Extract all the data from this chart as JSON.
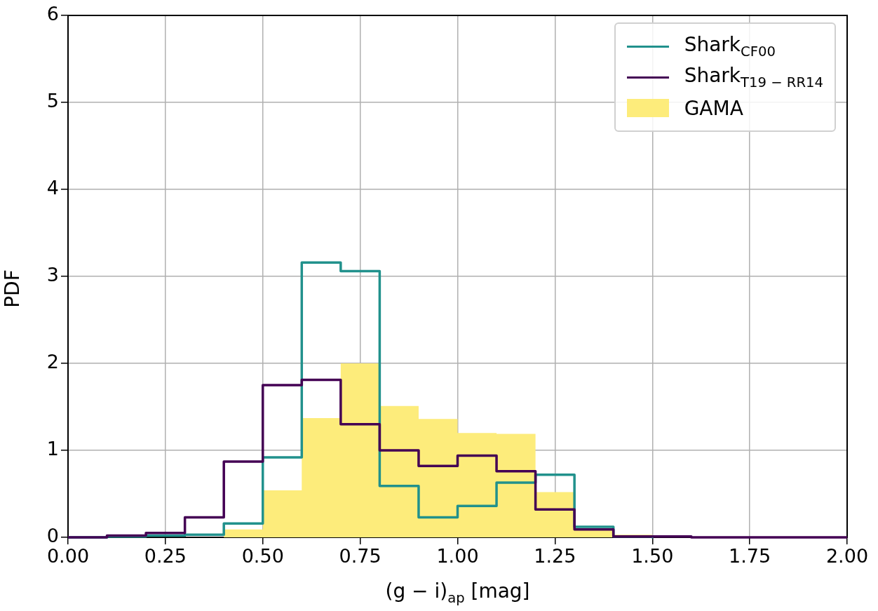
{
  "chart_data": {
    "type": "histogram",
    "xlabel": "(g − i)$_{ap}$ [mag]",
    "ylabel": "PDF",
    "bins": [
      0,
      0.1,
      0.2,
      0.3,
      0.4,
      0.5,
      0.6,
      0.7,
      0.8,
      0.9,
      1.0,
      1.1,
      1.2,
      1.3,
      1.4,
      1.5,
      1.6,
      1.7,
      1.8,
      1.9,
      2.0
    ],
    "series": [
      {
        "name": "Shark$_{CF00}$",
        "type": "step",
        "color": "#21918c",
        "x": [
          0,
          0.1,
          0.2,
          0.3,
          0.4,
          0.5,
          0.6,
          0.7,
          0.8,
          0.9,
          1.0,
          1.1,
          1.2,
          1.3,
          1.4,
          1.5
        ],
        "values": [
          0,
          0.01,
          0.02,
          0.03,
          0.16,
          0.92,
          3.16,
          3.06,
          0.59,
          0.23,
          0.36,
          0.63,
          0.72,
          0.12,
          0.01,
          0
        ]
      },
      {
        "name": "Shark$_{T19 − RR14}$",
        "type": "step",
        "color": "#440154",
        "x": [
          0,
          0.1,
          0.2,
          0.3,
          0.4,
          0.5,
          0.6,
          0.7,
          0.8,
          0.9,
          1.0,
          1.1,
          1.2,
          1.3,
          1.4,
          1.5,
          1.6,
          1.7,
          1.8,
          1.9,
          2.0
        ],
        "values": [
          0,
          0.02,
          0.05,
          0.23,
          0.87,
          1.75,
          1.81,
          1.3,
          1.0,
          0.82,
          0.94,
          0.76,
          0.32,
          0.09,
          0.01,
          0.01,
          0,
          0,
          0,
          0,
          0
        ]
      },
      {
        "name": "GAMA",
        "type": "histogram",
        "color": "#fdec7b",
        "values": [
          0,
          0,
          0,
          0,
          0.09,
          0.54,
          1.37,
          2.0,
          1.51,
          1.36,
          1.2,
          1.19,
          0.52,
          0.09,
          0.03,
          0,
          0,
          0,
          0,
          0
        ]
      }
    ],
    "xlim": [
      0,
      2
    ],
    "xticks": [
      {
        "value": 0,
        "label": "0.00"
      },
      {
        "value": 0.25,
        "label": "0.25"
      },
      {
        "value": 0.5,
        "label": "0.50"
      },
      {
        "value": 0.75,
        "label": "0.75"
      },
      {
        "value": 1,
        "label": "1.00"
      },
      {
        "value": 1.25,
        "label": "1.25"
      },
      {
        "value": 1.5,
        "label": "1.50"
      },
      {
        "value": 1.75,
        "label": "1.75"
      },
      {
        "value": 2,
        "label": "2.00"
      }
    ],
    "ylim": [
      0,
      6
    ],
    "yticks": [
      0,
      1,
      2,
      3,
      4,
      5,
      6
    ],
    "grid": true,
    "legend": "top right"
  }
}
